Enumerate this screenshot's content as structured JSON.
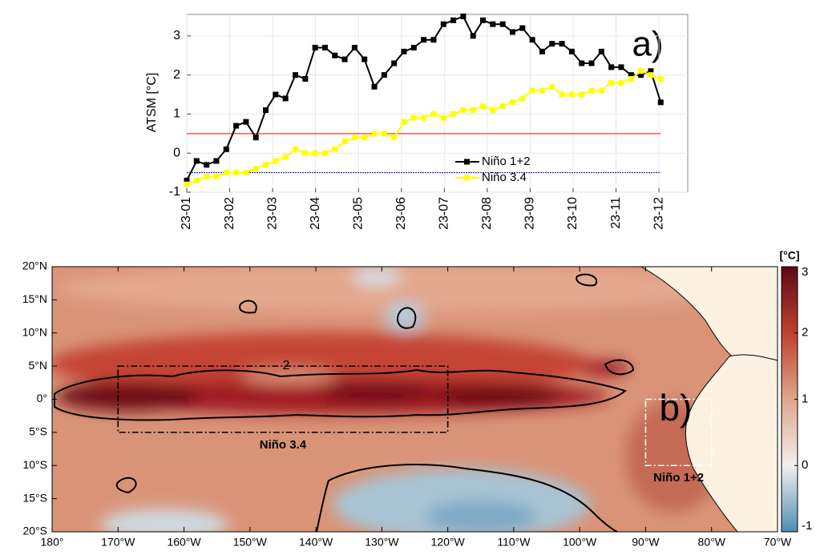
{
  "chart_data": [
    {
      "type": "line",
      "y_label": "ATSM [°C]",
      "annotation": "a)",
      "x": [
        1,
        1.23,
        1.46,
        1.69,
        1.92,
        2.15,
        2.38,
        2.61,
        2.84,
        3.07,
        3.3,
        3.53,
        3.76,
        3.99,
        4.22,
        4.45,
        4.68,
        4.91,
        5.14,
        5.37,
        5.6,
        5.83,
        6.06,
        6.29,
        6.52,
        6.75,
        6.98,
        7.21,
        7.44,
        7.67,
        7.9,
        8.13,
        8.36,
        8.59,
        8.82,
        9.05,
        9.28,
        9.51,
        9.74,
        9.97,
        10.2,
        10.43,
        10.66,
        10.89,
        11.12,
        11.35,
        11.58,
        11.81,
        12.04
      ],
      "series": [
        {
          "name": "Niño 1+2",
          "color": "#000000",
          "values": [
            -0.7,
            -0.2,
            -0.3,
            -0.2,
            0.1,
            0.7,
            0.8,
            0.4,
            1.1,
            1.5,
            1.4,
            2.0,
            1.9,
            2.7,
            2.7,
            2.5,
            2.4,
            2.7,
            2.4,
            1.7,
            2.0,
            2.3,
            2.6,
            2.7,
            2.9,
            2.9,
            3.3,
            3.4,
            3.5,
            3.0,
            3.4,
            3.3,
            3.3,
            3.1,
            3.2,
            2.9,
            2.6,
            2.8,
            2.8,
            2.6,
            2.3,
            2.3,
            2.6,
            2.2,
            2.2,
            2.0,
            2.0,
            2.1,
            1.3
          ]
        },
        {
          "name": "Niño 3.4",
          "color": "#ffff00",
          "values": [
            -0.8,
            -0.7,
            -0.6,
            -0.6,
            -0.5,
            -0.5,
            -0.5,
            -0.4,
            -0.3,
            -0.2,
            -0.1,
            0.1,
            0.0,
            0.0,
            0.0,
            0.1,
            0.3,
            0.4,
            0.4,
            0.5,
            0.5,
            0.4,
            0.8,
            0.9,
            0.9,
            1.0,
            0.9,
            1.0,
            1.1,
            1.1,
            1.2,
            1.1,
            1.2,
            1.3,
            1.4,
            1.6,
            1.6,
            1.7,
            1.5,
            1.5,
            1.5,
            1.6,
            1.6,
            1.8,
            1.8,
            1.9,
            2.1,
            2.0,
            1.9
          ]
        }
      ],
      "reference_lines": [
        {
          "value": 0.5,
          "color": "#ff0000"
        },
        {
          "value": -0.5,
          "color": "#0000cc"
        }
      ],
      "xlim": [
        1,
        12.67
      ],
      "ylim": [
        -1,
        3.55
      ],
      "xticks": [
        {
          "value": 1,
          "label": "23-01"
        },
        {
          "value": 2,
          "label": "23-02"
        },
        {
          "value": 3,
          "label": "23-03"
        },
        {
          "value": 4,
          "label": "23-04"
        },
        {
          "value": 5,
          "label": "23-05"
        },
        {
          "value": 6,
          "label": "23-06"
        },
        {
          "value": 7,
          "label": "23-07"
        },
        {
          "value": 8,
          "label": "23-08"
        },
        {
          "value": 9,
          "label": "23-09"
        },
        {
          "value": 10,
          "label": "23-10"
        },
        {
          "value": 11,
          "label": "23-11"
        },
        {
          "value": 12,
          "label": "23-12"
        }
      ],
      "yticks": [
        -1,
        0,
        1,
        2,
        3
      ],
      "grid": true,
      "legend": "bottom"
    },
    {
      "type": "map",
      "annotation": "b)",
      "contour_label": "2",
      "colorbar_label": "[°C]",
      "xlim": [
        -180,
        -70
      ],
      "ylim": [
        -20,
        20
      ],
      "xticks": [
        {
          "value": -180,
          "label": "180°"
        },
        {
          "value": -170,
          "label": "170°W"
        },
        {
          "value": -160,
          "label": "160°W"
        },
        {
          "value": -150,
          "label": "150°W"
        },
        {
          "value": -140,
          "label": "140°W"
        },
        {
          "value": -130,
          "label": "130°W"
        },
        {
          "value": -120,
          "label": "120°W"
        },
        {
          "value": -110,
          "label": "110°W"
        },
        {
          "value": -100,
          "label": "100°W"
        },
        {
          "value": -90,
          "label": "90°W"
        },
        {
          "value": -80,
          "label": "80°W"
        },
        {
          "value": -70,
          "label": "70°W"
        }
      ],
      "yticks": [
        {
          "value": -20,
          "label": "20°S"
        },
        {
          "value": -15,
          "label": "15°S"
        },
        {
          "value": -10,
          "label": "10°S"
        },
        {
          "value": -5,
          "label": "5°S"
        },
        {
          "value": 0,
          "label": "0°"
        },
        {
          "value": 5,
          "label": "5°N"
        },
        {
          "value": 10,
          "label": "10°N"
        },
        {
          "value": 15,
          "label": "15°N"
        },
        {
          "value": 20,
          "label": "20°N"
        }
      ],
      "clim": [
        -1,
        3
      ],
      "cticks": [
        -1,
        0,
        1,
        2,
        3
      ],
      "colorscale": [
        "#4f8db3",
        "#f1efed",
        "#e0a58c",
        "#c0412f",
        "#5a0a16"
      ],
      "regions": [
        {
          "name": "Niño 3.4",
          "lon": [
            -170,
            -120
          ],
          "lat": [
            -5,
            5
          ],
          "color": "#000000"
        },
        {
          "name": "Niño 1+2",
          "lon": [
            -90,
            -80
          ],
          "lat": [
            -10,
            0
          ],
          "color": "#ffffff"
        }
      ]
    }
  ]
}
